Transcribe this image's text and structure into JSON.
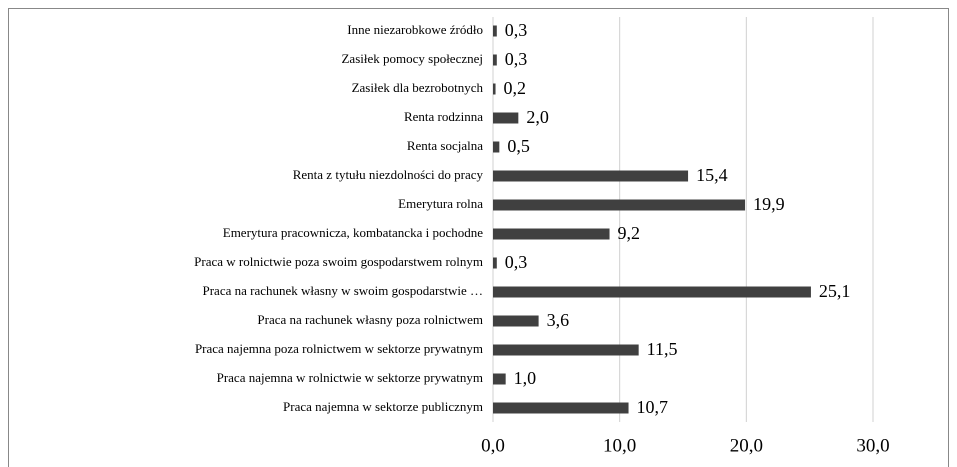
{
  "chart_data": {
    "type": "bar",
    "orientation": "horizontal",
    "categories": [
      "Inne niezarobkowe źródło",
      "Zasiłek pomocy społecznej",
      "Zasiłek dla bezrobotnych",
      "Renta rodzinna",
      "Renta socjalna",
      "Renta z tytułu niezdolności do pracy",
      "Emerytura rolna",
      "Emerytura pracownicza, kombatancka i pochodne",
      "Praca w rolnictwie poza swoim gospodarstwem rolnym",
      "Praca na rachunek własny w swoim gospodarstwie …",
      "Praca na rachunek własny poza rolnictwem",
      "Praca najemna poza rolnictwem w sektorze prywatnym",
      "Praca najemna w rolnictwie w sektorze prywatnym",
      "Praca najemna w sektorze publicznym"
    ],
    "values": [
      0.3,
      0.3,
      0.2,
      2.0,
      0.5,
      15.4,
      19.9,
      9.2,
      0.3,
      25.1,
      3.6,
      11.5,
      1.0,
      10.7
    ],
    "value_labels": [
      "0,3",
      "0,3",
      "0,2",
      "2,0",
      "0,5",
      "15,4",
      "19,9",
      "9,2",
      "0,3",
      "25,1",
      "3,6",
      "11,5",
      "1,0",
      "10,7"
    ],
    "color": "#404040",
    "xlim": [
      0,
      30
    ],
    "xticks": [
      {
        "value": 0,
        "label": "0,0"
      },
      {
        "value": 10,
        "label": "10,0"
      },
      {
        "value": 20,
        "label": "20,0"
      },
      {
        "value": 30,
        "label": "30,0"
      }
    ],
    "grid": true
  }
}
